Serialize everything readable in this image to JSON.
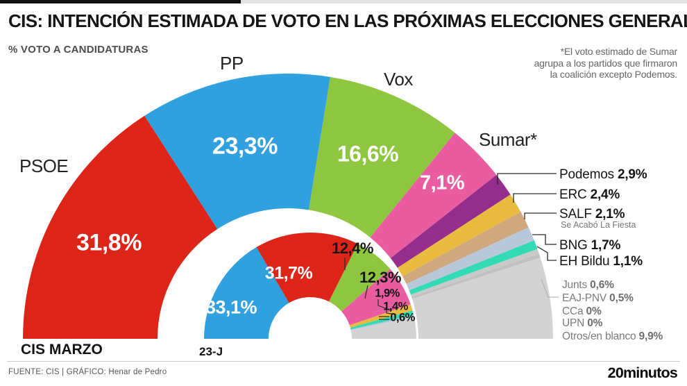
{
  "page": {
    "progress_bar": {
      "filled_color": "#111111",
      "track_color": "#e3e3e3",
      "filled_percent": 35
    },
    "title": "CIS: INTENCIÓN ESTIMADA DE VOTO EN LAS PRÓXIMAS ELECCIONES GENERALES",
    "subtitle": "% VOTO A CANDIDATURAS",
    "note_lines": [
      "*El voto estimado de Sumar",
      "agrupa a los partidos que firmaron",
      "la coalición excepto Podemos."
    ],
    "source": "FUENTE: CIS  |  GRÁFICO: Henar de Pedro",
    "brand": "20minutos"
  },
  "chart_data": {
    "type": "pie",
    "variant": "nested-half-donut",
    "unit": "%",
    "total": 100,
    "legend_position": "right",
    "rings": [
      {
        "id": "outer",
        "label": "CIS MARZO",
        "series": [
          {
            "party": "PSOE",
            "value": 31.8,
            "display": "31,8%",
            "color": "#dc2418"
          },
          {
            "party": "PP",
            "value": 23.3,
            "display": "23,3%",
            "color": "#31a0de"
          },
          {
            "party": "Vox",
            "value": 16.6,
            "display": "16,6%",
            "color": "#8ec63f"
          },
          {
            "party": "Sumar*",
            "value": 7.1,
            "display": "7,1%",
            "color": "#ea5ca0"
          },
          {
            "party": "Podemos",
            "value": 2.9,
            "display": "2,9%",
            "color": "#942d8c"
          },
          {
            "party": "ERC",
            "value": 2.4,
            "display": "2,4%",
            "color": "#e9bc40"
          },
          {
            "party": "SALF",
            "sublabel": "Se Acabó La Fiesta",
            "value": 2.1,
            "display": "2,1%",
            "color": "#d0a87d"
          },
          {
            "party": "BNG",
            "value": 1.7,
            "display": "1,7%",
            "color": "#b9c7db"
          },
          {
            "party": "EH Bildu",
            "value": 1.1,
            "display": "1,1%",
            "color": "#33dab6"
          },
          {
            "party": "Junts",
            "value": 0.6,
            "display": "0,6%",
            "color": "#c9c9c9"
          },
          {
            "party": "EAJ-PNV",
            "value": 0.5,
            "display": "0,5%",
            "color": "#c0c0c0"
          },
          {
            "party": "CCa",
            "value": 0,
            "display": "0%",
            "color": "#cccccc"
          },
          {
            "party": "UPN",
            "value": 0,
            "display": "0%",
            "color": "#cccccc"
          },
          {
            "party": "Otros/en blanco",
            "value": 9.9,
            "display": "9,9%",
            "color": "#d3d3d3"
          }
        ]
      },
      {
        "id": "inner",
        "label": "23-J",
        "series": [
          {
            "party": "PP",
            "value": 33.1,
            "display": "33,1%",
            "color": "#31a0de"
          },
          {
            "party": "PSOE",
            "value": 31.7,
            "display": "31,7%",
            "color": "#dc2418"
          },
          {
            "party": "Vox",
            "value": 12.4,
            "display": "12,4%",
            "color": "#8ec63f"
          },
          {
            "party": "Sumar",
            "value": 12.3,
            "display": "12,3%",
            "color": "#ea5ca0"
          },
          {
            "party": "ERC",
            "value": 1.9,
            "display": "1,9%",
            "color": "#e9bc40"
          },
          {
            "party": "EH Bildu",
            "value": 1.4,
            "display": "1,4%",
            "color": "#33dab6"
          },
          {
            "party": "BNG",
            "value": 0.6,
            "display": "0,6%",
            "color": "#b9c7db"
          },
          {
            "party": "Otros/en blanco",
            "value": 6.6,
            "display": "",
            "color": "#d3d3d3"
          }
        ]
      }
    ]
  }
}
